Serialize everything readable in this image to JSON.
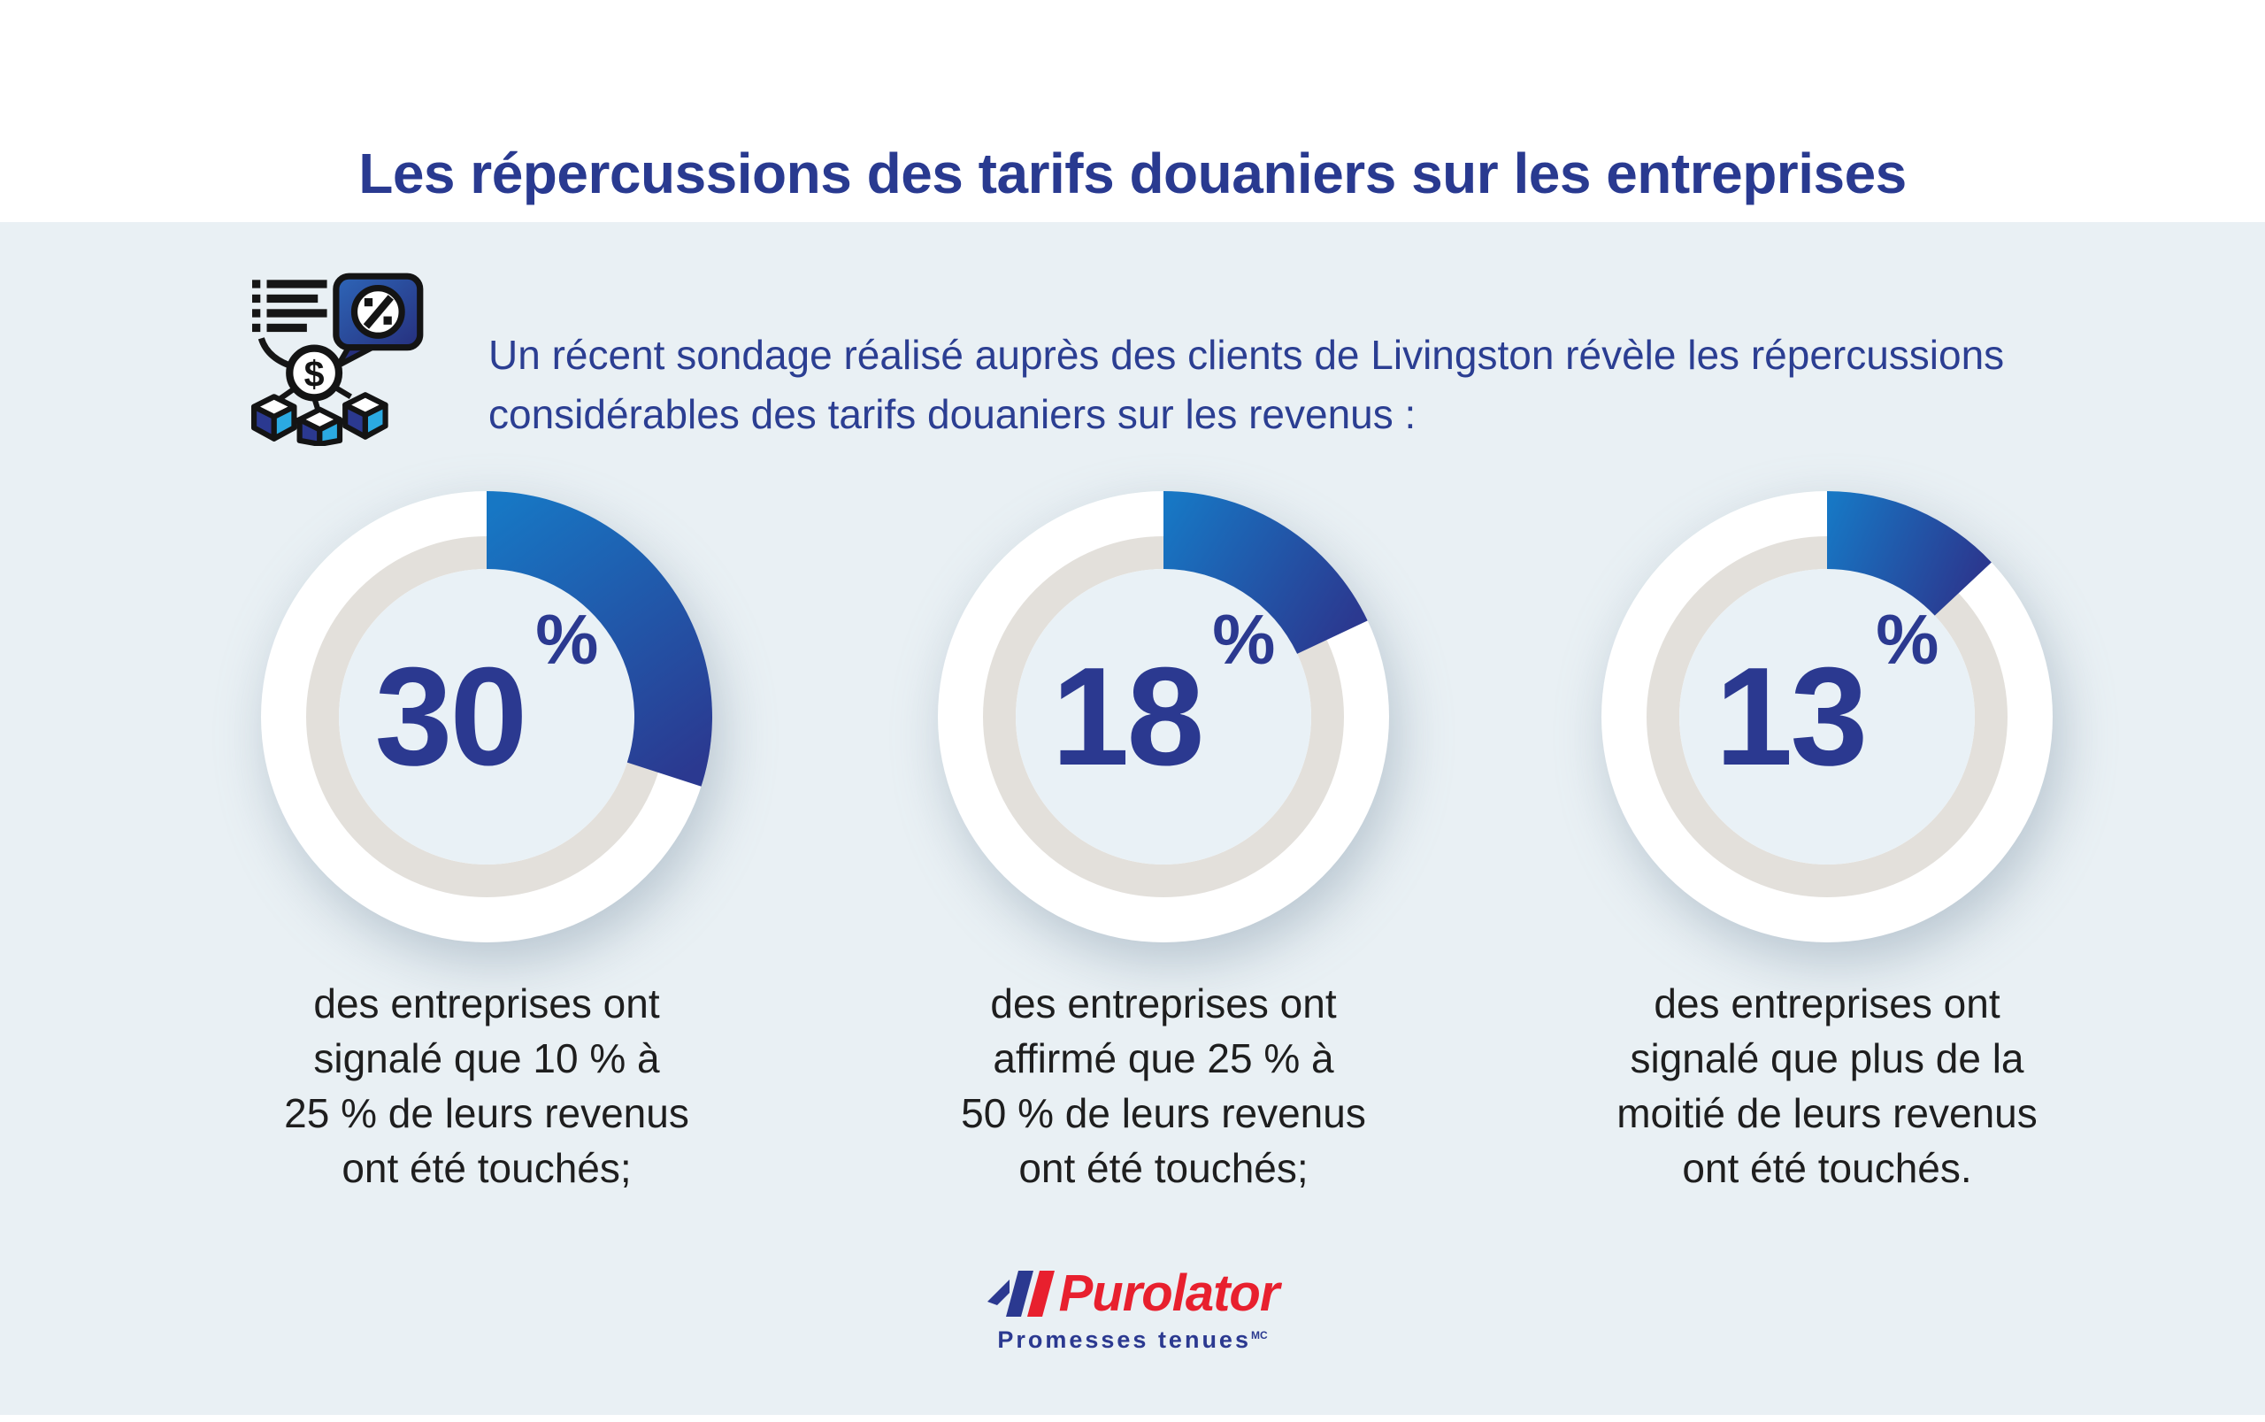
{
  "header": {
    "title": "Les répercussions des tarifs douaniers sur les entreprises"
  },
  "intro": {
    "icon": "tariff-survey-icon",
    "text": "Un récent sondage réalisé auprès des clients de Livingston révèle les répercussions considérables des tarifs douaniers sur les revenus :"
  },
  "stats": [
    {
      "value": "30",
      "unit": "%",
      "caption": "des entreprises ont signalé que 10 % à 25 % de leurs revenus ont été touchés;"
    },
    {
      "value": "18",
      "unit": "%",
      "caption": "des entreprises ont affirmé que 25 % à 50 % de leurs revenus ont été touchés;"
    },
    {
      "value": "13",
      "unit": "%",
      "caption": "des entreprises ont signalé que plus de la moitié de leurs revenus ont été touchés."
    }
  ],
  "footer": {
    "brand": "Purolator",
    "tagline": "Promesses tenues",
    "trademark": "MC"
  },
  "colors": {
    "navy": "#2B3990",
    "azure": "#1777C4",
    "track_gray": "#E3E0DB",
    "disc_blue": "#E9F1F6",
    "section_bg": "#E9F0F4",
    "brand_red": "#E8202E",
    "cyan": "#2BAAE2",
    "text_black": "#1E1E1E",
    "white": "#FFFFFF"
  },
  "chart_data": [
    {
      "type": "pie",
      "subtype": "donut",
      "values": [
        30,
        70
      ],
      "center_label": "30 %",
      "start_angle_deg": 0,
      "direction": "clockwise",
      "caption": "des entreprises ont signalé que 10 % à 25 % de leurs revenus ont été touchés;"
    },
    {
      "type": "pie",
      "subtype": "donut",
      "values": [
        18,
        82
      ],
      "center_label": "18 %",
      "start_angle_deg": 0,
      "direction": "clockwise",
      "caption": "des entreprises ont affirmé que 25 % à 50 % de leurs revenus ont été touchés;"
    },
    {
      "type": "pie",
      "subtype": "donut",
      "values": [
        13,
        87
      ],
      "center_label": "13 %",
      "start_angle_deg": 0,
      "direction": "clockwise",
      "caption": "des entreprises ont signalé que plus de la moitié de leurs revenus ont été touchés."
    }
  ]
}
